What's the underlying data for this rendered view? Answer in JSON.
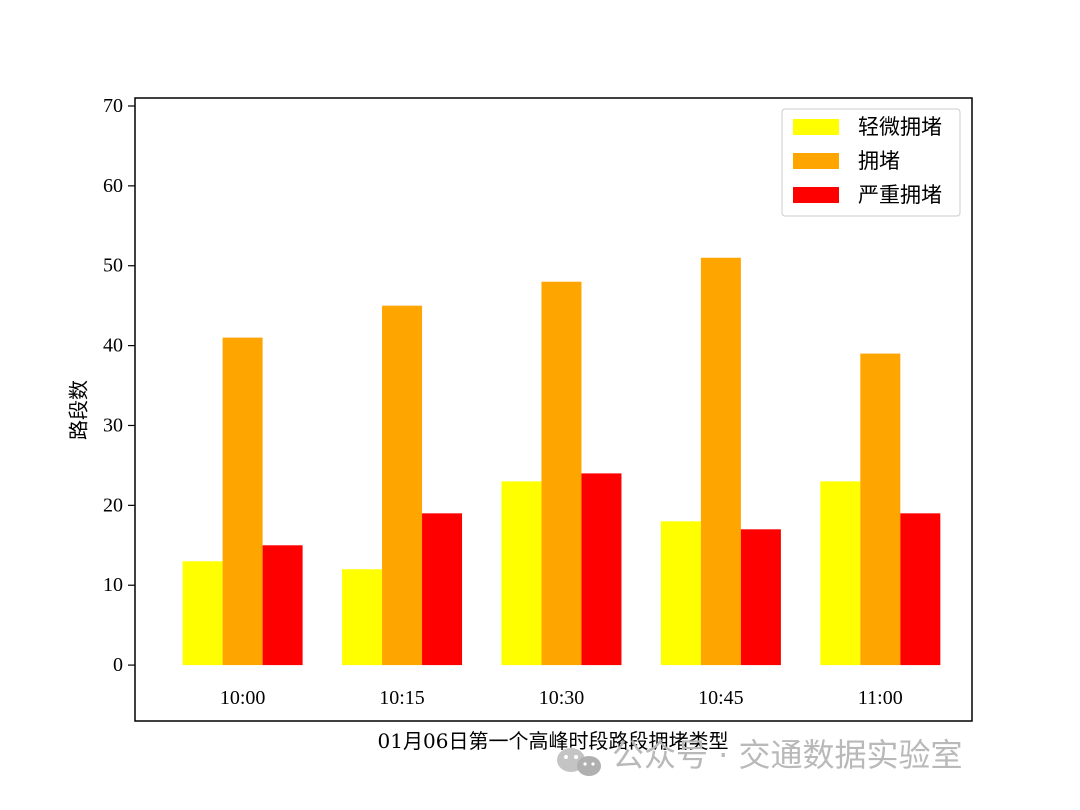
{
  "chart_data": {
    "type": "bar",
    "categories": [
      "10:00",
      "10:15",
      "10:30",
      "10:45",
      "11:00"
    ],
    "series": [
      {
        "name": "轻微拥堵",
        "color": "#ffff00",
        "values": [
          13,
          12,
          23,
          18,
          23
        ]
      },
      {
        "name": "拥堵",
        "color": "#ffa500",
        "values": [
          41,
          45,
          48,
          51,
          39
        ]
      },
      {
        "name": "严重拥堵",
        "color": "#ff0000",
        "values": [
          15,
          19,
          24,
          17,
          19
        ]
      }
    ],
    "xlabel": "01月06日第一个高峰时段路段拥堵类型",
    "ylabel": "路段数",
    "ylim": [
      -7,
      71
    ],
    "yticks": [
      0,
      10,
      20,
      30,
      40,
      50,
      60,
      70
    ],
    "legend_position": "top-right",
    "grid": false
  },
  "watermark": {
    "text": "公众号 · 交通数据实验室",
    "icon": "wechat-icon"
  }
}
